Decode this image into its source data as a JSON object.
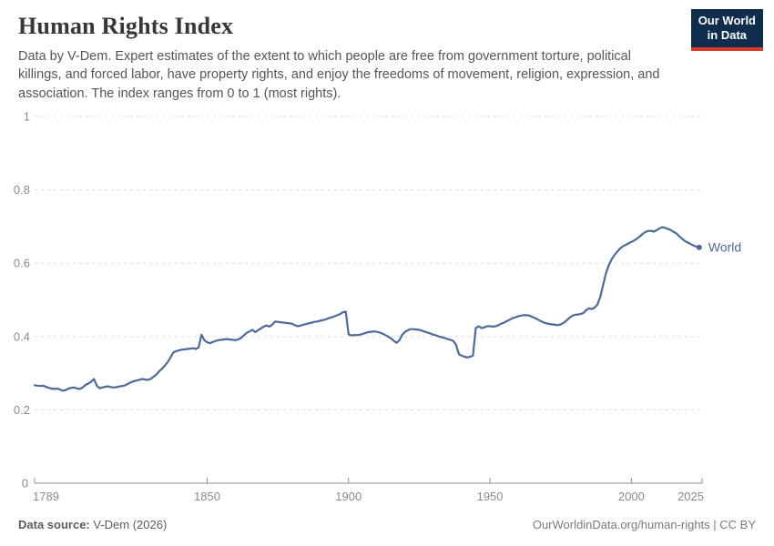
{
  "header": {
    "title": "Human Rights Index",
    "subtitle": "Data by V-Dem. Expert estimates of the extent to which people are free from government torture, political killings, and forced labor, have property rights, and enjoy the freedoms of movement, religion, expression, and association. The index ranges from 0 to 1 (most rights).",
    "logo": {
      "line1": "Our World",
      "line2": "in Data",
      "bg_color": "#102D4E",
      "stripe_color": "#DD3B27"
    }
  },
  "footer": {
    "source_label": "Data source:",
    "source_value": " V-Dem (2026)",
    "credit": "OurWorldinData.org/human-rights | CC BY"
  },
  "chart_data": {
    "type": "line",
    "title": "Human Rights Index",
    "xlabel": "",
    "ylabel": "",
    "xlim": [
      1789,
      2025
    ],
    "ylim": [
      0,
      1
    ],
    "x_ticks": [
      1789,
      1850,
      1900,
      1950,
      2000,
      2025
    ],
    "y_ticks": [
      0,
      0.2,
      0.4,
      0.6,
      0.8,
      1
    ],
    "grid": "horizontal-dashed",
    "legend_position": "end-of-line",
    "colors": {
      "line": "#4C6A9C",
      "grid": "#DDDDDD",
      "axis": "#8F8F8F",
      "tick_label": "#8A8A8A"
    },
    "series": [
      {
        "name": "World",
        "points": [
          [
            1789,
            0.267
          ],
          [
            1790,
            0.266
          ],
          [
            1791,
            0.265
          ],
          [
            1792,
            0.266
          ],
          [
            1793,
            0.263
          ],
          [
            1794,
            0.26
          ],
          [
            1795,
            0.258
          ],
          [
            1796,
            0.257
          ],
          [
            1797,
            0.258
          ],
          [
            1798,
            0.255
          ],
          [
            1799,
            0.252
          ],
          [
            1800,
            0.254
          ],
          [
            1801,
            0.258
          ],
          [
            1802,
            0.26
          ],
          [
            1803,
            0.261
          ],
          [
            1804,
            0.258
          ],
          [
            1805,
            0.257
          ],
          [
            1806,
            0.261
          ],
          [
            1807,
            0.268
          ],
          [
            1808,
            0.272
          ],
          [
            1809,
            0.277
          ],
          [
            1810,
            0.284
          ],
          [
            1811,
            0.266
          ],
          [
            1812,
            0.259
          ],
          [
            1813,
            0.261
          ],
          [
            1814,
            0.263
          ],
          [
            1815,
            0.264
          ],
          [
            1816,
            0.262
          ],
          [
            1817,
            0.261
          ],
          [
            1818,
            0.262
          ],
          [
            1819,
            0.264
          ],
          [
            1820,
            0.265
          ],
          [
            1821,
            0.267
          ],
          [
            1822,
            0.271
          ],
          [
            1823,
            0.275
          ],
          [
            1824,
            0.278
          ],
          [
            1825,
            0.28
          ],
          [
            1826,
            0.282
          ],
          [
            1827,
            0.284
          ],
          [
            1828,
            0.283
          ],
          [
            1829,
            0.282
          ],
          [
            1830,
            0.284
          ],
          [
            1831,
            0.29
          ],
          [
            1832,
            0.296
          ],
          [
            1833,
            0.305
          ],
          [
            1834,
            0.312
          ],
          [
            1835,
            0.32
          ],
          [
            1836,
            0.33
          ],
          [
            1837,
            0.342
          ],
          [
            1838,
            0.356
          ],
          [
            1839,
            0.36
          ],
          [
            1840,
            0.362
          ],
          [
            1841,
            0.364
          ],
          [
            1842,
            0.365
          ],
          [
            1843,
            0.366
          ],
          [
            1844,
            0.367
          ],
          [
            1845,
            0.368
          ],
          [
            1846,
            0.366
          ],
          [
            1847,
            0.37
          ],
          [
            1848,
            0.405
          ],
          [
            1849,
            0.39
          ],
          [
            1850,
            0.384
          ],
          [
            1851,
            0.382
          ],
          [
            1852,
            0.385
          ],
          [
            1853,
            0.388
          ],
          [
            1854,
            0.39
          ],
          [
            1855,
            0.391
          ],
          [
            1856,
            0.392
          ],
          [
            1857,
            0.393
          ],
          [
            1858,
            0.392
          ],
          [
            1859,
            0.391
          ],
          [
            1860,
            0.39
          ],
          [
            1861,
            0.392
          ],
          [
            1862,
            0.396
          ],
          [
            1863,
            0.403
          ],
          [
            1864,
            0.41
          ],
          [
            1865,
            0.414
          ],
          [
            1866,
            0.418
          ],
          [
            1867,
            0.412
          ],
          [
            1868,
            0.417
          ],
          [
            1869,
            0.422
          ],
          [
            1870,
            0.427
          ],
          [
            1871,
            0.43
          ],
          [
            1872,
            0.427
          ],
          [
            1873,
            0.432
          ],
          [
            1874,
            0.441
          ],
          [
            1875,
            0.44
          ],
          [
            1876,
            0.439
          ],
          [
            1877,
            0.438
          ],
          [
            1878,
            0.437
          ],
          [
            1879,
            0.436
          ],
          [
            1880,
            0.435
          ],
          [
            1881,
            0.431
          ],
          [
            1882,
            0.428
          ],
          [
            1883,
            0.43
          ],
          [
            1884,
            0.432
          ],
          [
            1885,
            0.434
          ],
          [
            1886,
            0.436
          ],
          [
            1887,
            0.438
          ],
          [
            1888,
            0.44
          ],
          [
            1889,
            0.441
          ],
          [
            1890,
            0.443
          ],
          [
            1891,
            0.445
          ],
          [
            1892,
            0.447
          ],
          [
            1893,
            0.45
          ],
          [
            1894,
            0.452
          ],
          [
            1895,
            0.455
          ],
          [
            1896,
            0.458
          ],
          [
            1897,
            0.461
          ],
          [
            1898,
            0.466
          ],
          [
            1899,
            0.468
          ],
          [
            1900,
            0.406
          ],
          [
            1901,
            0.403
          ],
          [
            1902,
            0.404
          ],
          [
            1903,
            0.404
          ],
          [
            1904,
            0.405
          ],
          [
            1905,
            0.407
          ],
          [
            1906,
            0.41
          ],
          [
            1907,
            0.412
          ],
          [
            1908,
            0.413
          ],
          [
            1909,
            0.414
          ],
          [
            1910,
            0.413
          ],
          [
            1911,
            0.411
          ],
          [
            1912,
            0.408
          ],
          [
            1913,
            0.404
          ],
          [
            1914,
            0.4
          ],
          [
            1915,
            0.395
          ],
          [
            1916,
            0.388
          ],
          [
            1917,
            0.383
          ],
          [
            1918,
            0.39
          ],
          [
            1919,
            0.405
          ],
          [
            1920,
            0.413
          ],
          [
            1921,
            0.417
          ],
          [
            1922,
            0.42
          ],
          [
            1923,
            0.42
          ],
          [
            1924,
            0.419
          ],
          [
            1925,
            0.418
          ],
          [
            1926,
            0.416
          ],
          [
            1927,
            0.413
          ],
          [
            1928,
            0.411
          ],
          [
            1929,
            0.408
          ],
          [
            1930,
            0.405
          ],
          [
            1931,
            0.403
          ],
          [
            1932,
            0.4
          ],
          [
            1933,
            0.398
          ],
          [
            1934,
            0.396
          ],
          [
            1935,
            0.393
          ],
          [
            1936,
            0.391
          ],
          [
            1937,
            0.388
          ],
          [
            1938,
            0.378
          ],
          [
            1939,
            0.352
          ],
          [
            1940,
            0.348
          ],
          [
            1941,
            0.345
          ],
          [
            1942,
            0.343
          ],
          [
            1943,
            0.345
          ],
          [
            1944,
            0.348
          ],
          [
            1945,
            0.423
          ],
          [
            1946,
            0.428
          ],
          [
            1947,
            0.423
          ],
          [
            1948,
            0.425
          ],
          [
            1949,
            0.428
          ],
          [
            1950,
            0.428
          ],
          [
            1951,
            0.427
          ],
          [
            1952,
            0.428
          ],
          [
            1953,
            0.431
          ],
          [
            1954,
            0.435
          ],
          [
            1955,
            0.438
          ],
          [
            1956,
            0.442
          ],
          [
            1957,
            0.446
          ],
          [
            1958,
            0.45
          ],
          [
            1959,
            0.452
          ],
          [
            1960,
            0.455
          ],
          [
            1961,
            0.457
          ],
          [
            1962,
            0.458
          ],
          [
            1963,
            0.458
          ],
          [
            1964,
            0.457
          ],
          [
            1965,
            0.453
          ],
          [
            1966,
            0.45
          ],
          [
            1967,
            0.446
          ],
          [
            1968,
            0.442
          ],
          [
            1969,
            0.438
          ],
          [
            1970,
            0.436
          ],
          [
            1971,
            0.434
          ],
          [
            1972,
            0.433
          ],
          [
            1973,
            0.432
          ],
          [
            1974,
            0.431
          ],
          [
            1975,
            0.433
          ],
          [
            1976,
            0.437
          ],
          [
            1977,
            0.443
          ],
          [
            1978,
            0.45
          ],
          [
            1979,
            0.456
          ],
          [
            1980,
            0.459
          ],
          [
            1981,
            0.46
          ],
          [
            1982,
            0.461
          ],
          [
            1983,
            0.464
          ],
          [
            1984,
            0.472
          ],
          [
            1985,
            0.477
          ],
          [
            1986,
            0.475
          ],
          [
            1987,
            0.479
          ],
          [
            1988,
            0.487
          ],
          [
            1989,
            0.508
          ],
          [
            1990,
            0.54
          ],
          [
            1991,
            0.572
          ],
          [
            1992,
            0.594
          ],
          [
            1993,
            0.61
          ],
          [
            1994,
            0.622
          ],
          [
            1995,
            0.631
          ],
          [
            1996,
            0.64
          ],
          [
            1997,
            0.646
          ],
          [
            1998,
            0.65
          ],
          [
            1999,
            0.654
          ],
          [
            2000,
            0.658
          ],
          [
            2001,
            0.662
          ],
          [
            2002,
            0.667
          ],
          [
            2003,
            0.673
          ],
          [
            2004,
            0.68
          ],
          [
            2005,
            0.685
          ],
          [
            2006,
            0.688
          ],
          [
            2007,
            0.688
          ],
          [
            2008,
            0.686
          ],
          [
            2009,
            0.69
          ],
          [
            2010,
            0.695
          ],
          [
            2011,
            0.698
          ],
          [
            2012,
            0.696
          ],
          [
            2013,
            0.693
          ],
          [
            2014,
            0.69
          ],
          [
            2015,
            0.685
          ],
          [
            2016,
            0.681
          ],
          [
            2017,
            0.673
          ],
          [
            2018,
            0.666
          ],
          [
            2019,
            0.66
          ],
          [
            2020,
            0.656
          ],
          [
            2021,
            0.652
          ],
          [
            2022,
            0.648
          ],
          [
            2023,
            0.645
          ],
          [
            2024,
            0.643
          ]
        ]
      }
    ]
  }
}
